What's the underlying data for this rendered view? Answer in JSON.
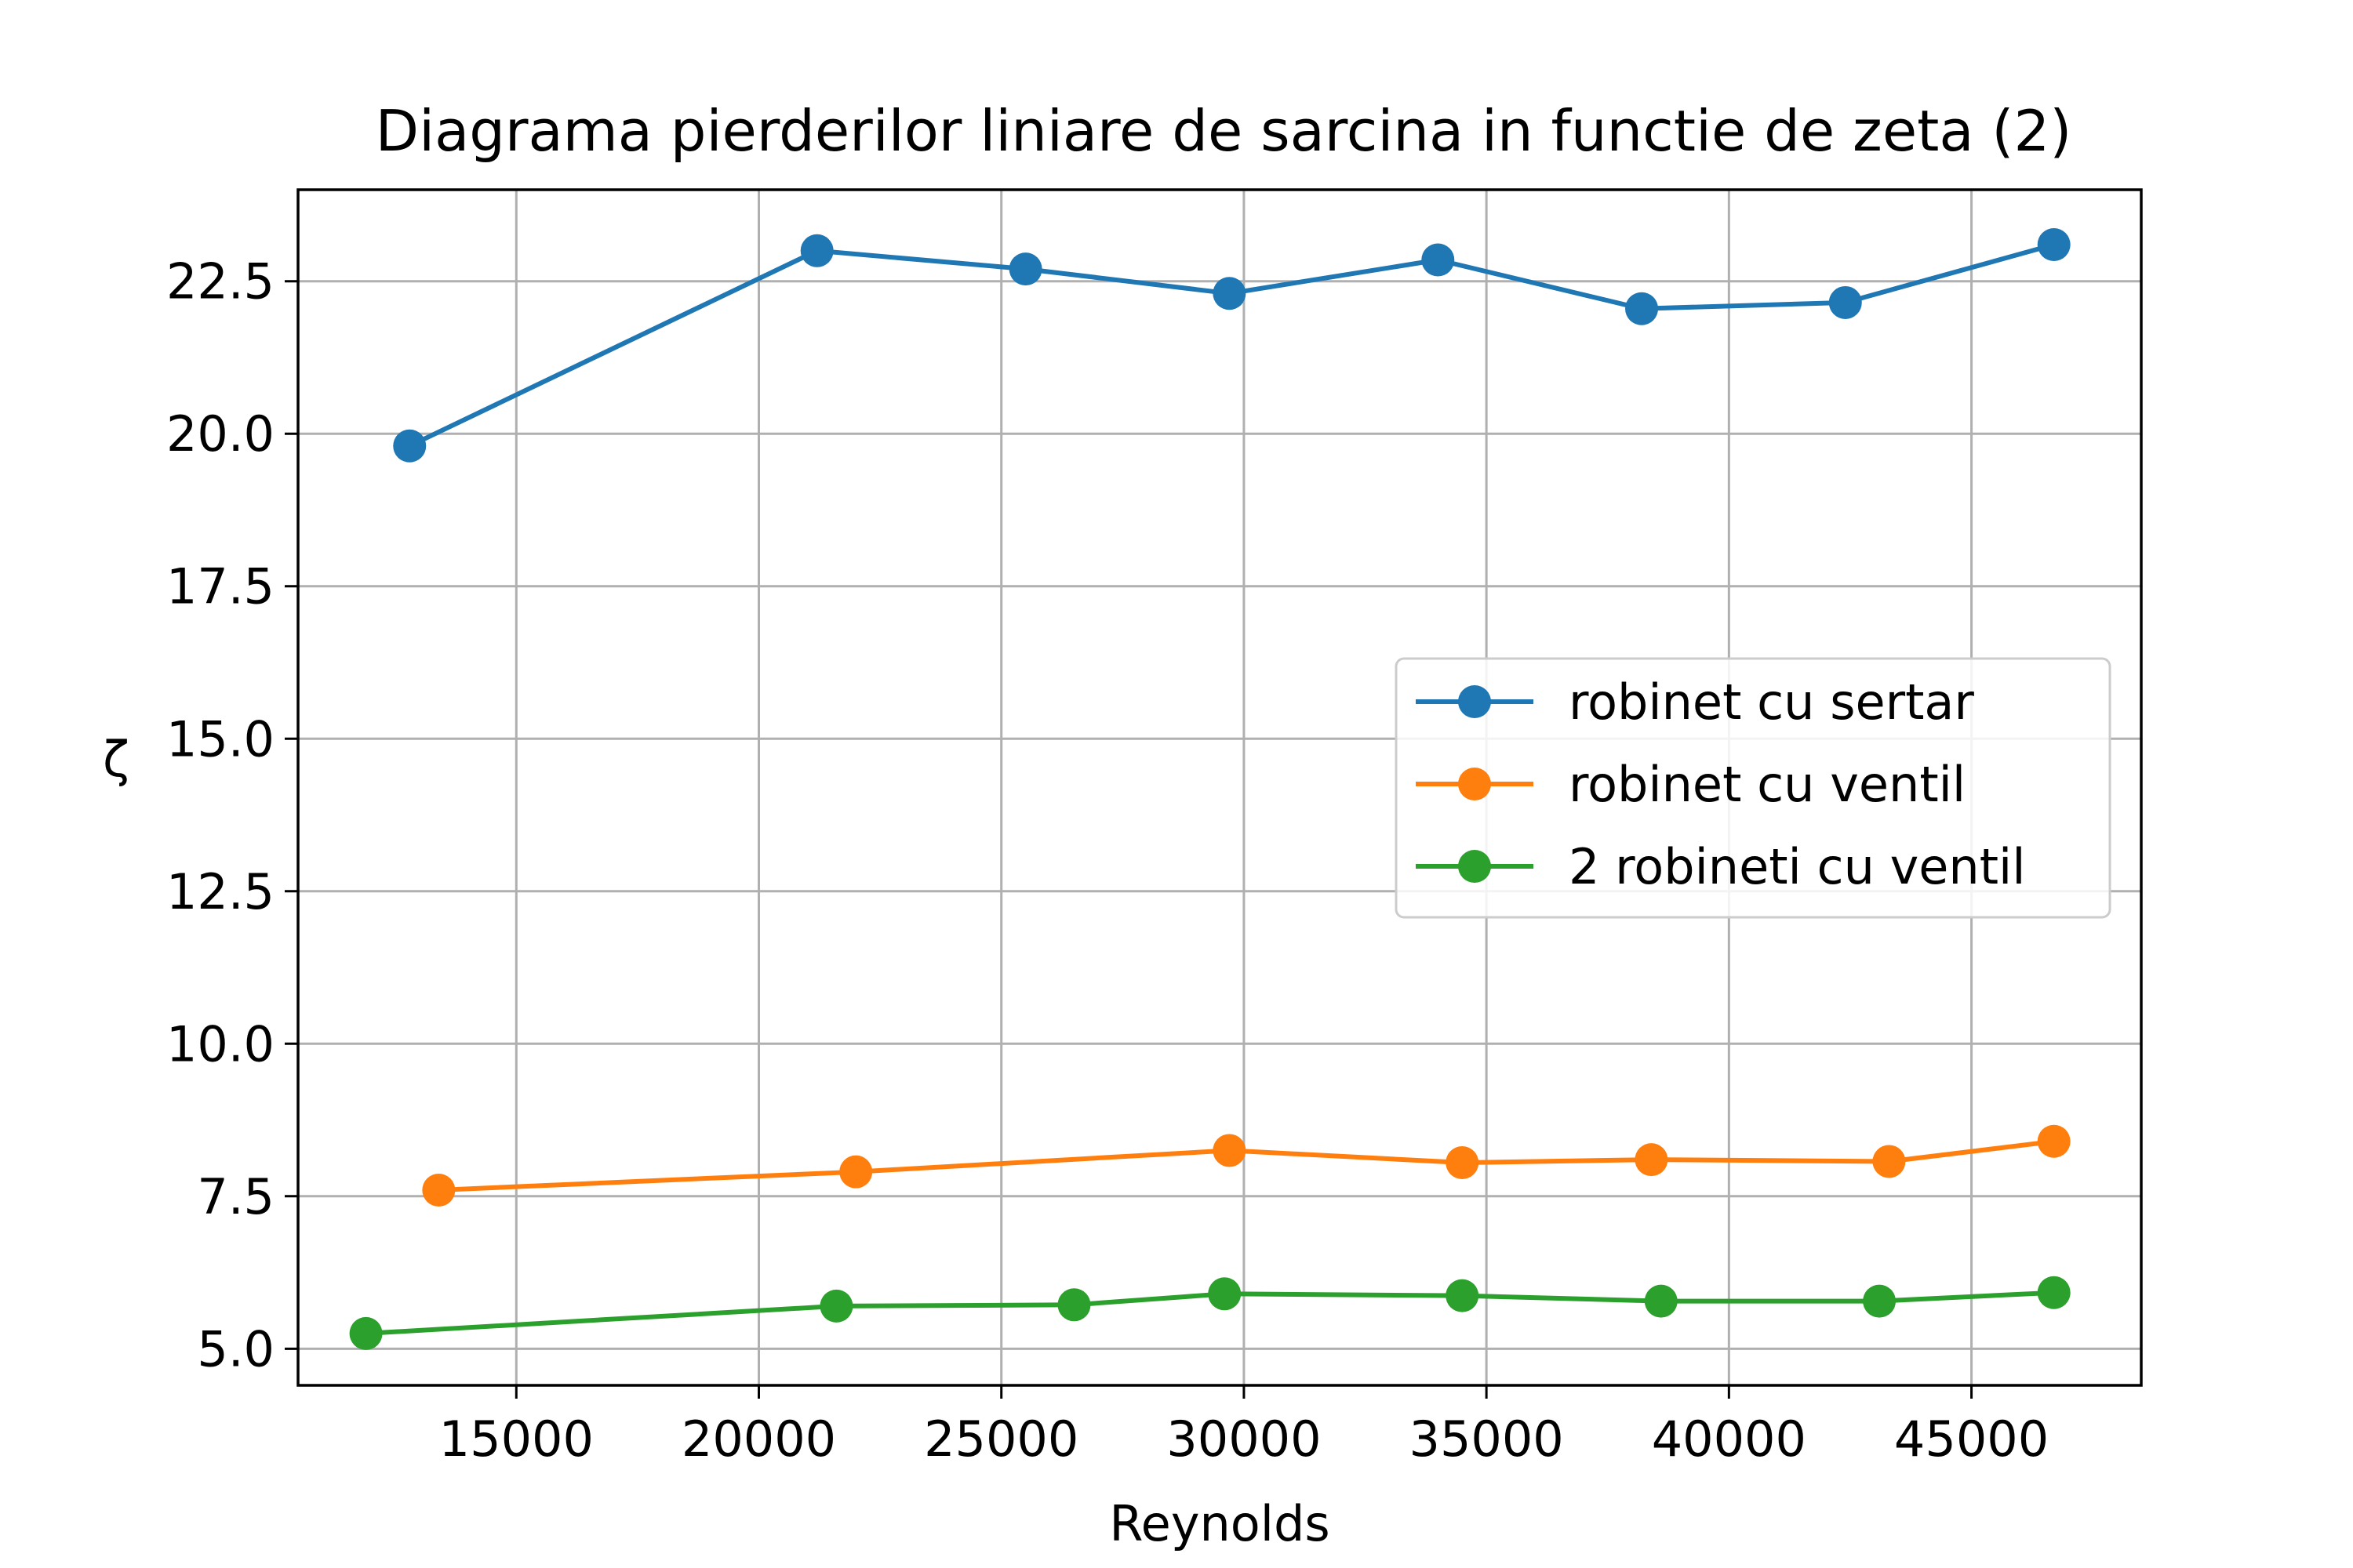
{
  "chart_data": {
    "type": "line",
    "title": "Diagrama pierderilor liniare de sarcina in functie de zeta (2)",
    "xlabel": "Reynolds",
    "ylabel": "ζ",
    "xlim": [
      10500,
      48500
    ],
    "ylim": [
      4.4,
      24.0
    ],
    "xticks": [
      15000,
      20000,
      25000,
      30000,
      35000,
      40000,
      45000
    ],
    "xtick_labels": [
      "15000",
      "20000",
      "25000",
      "30000",
      "35000",
      "40000",
      "45000"
    ],
    "yticks": [
      5.0,
      7.5,
      10.0,
      12.5,
      15.0,
      17.5,
      20.0,
      22.5
    ],
    "ytick_labels": [
      "5.0",
      "7.5",
      "10.0",
      "12.5",
      "15.0",
      "17.5",
      "20.0",
      "22.5"
    ],
    "grid": true,
    "legend_position": "center-right",
    "series": [
      {
        "name": "robinet cu sertar",
        "color": "#1f77b4",
        "x": [
          12800,
          21200,
          25500,
          29700,
          34000,
          38200,
          42400,
          46700
        ],
        "y": [
          19.8,
          23.0,
          22.7,
          22.3,
          22.85,
          22.05,
          22.15,
          23.1
        ]
      },
      {
        "name": "robinet cu ventil",
        "color": "#ff7f0e",
        "x": [
          13400,
          22000,
          29700,
          34500,
          38400,
          43300,
          46700
        ],
        "y": [
          7.6,
          7.9,
          8.25,
          8.05,
          8.1,
          8.07,
          8.4
        ]
      },
      {
        "name": "2 robineti cu ventil",
        "color": "#2ca02c",
        "x": [
          11900,
          21600,
          26500,
          29600,
          34500,
          38600,
          43100,
          46700
        ],
        "y": [
          5.25,
          5.7,
          5.72,
          5.9,
          5.87,
          5.78,
          5.78,
          5.92
        ]
      }
    ]
  }
}
